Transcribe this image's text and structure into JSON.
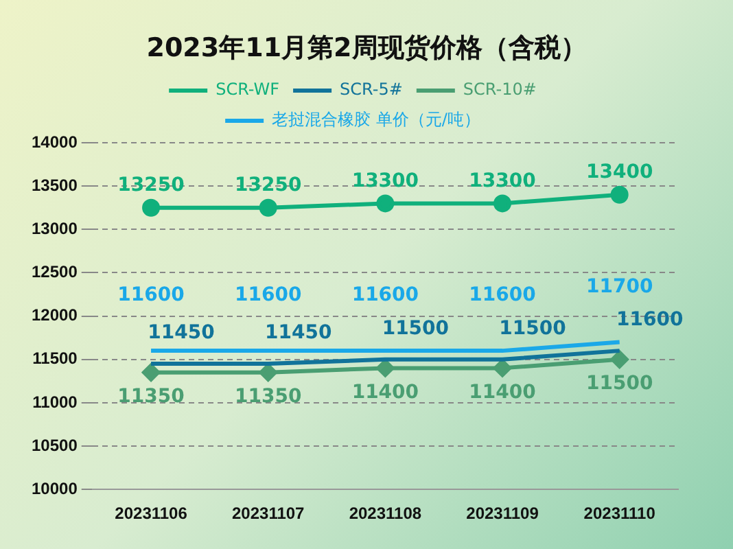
{
  "chart_data": {
    "type": "line",
    "title": "2023年11月第2周现货价格（含税）",
    "categories": [
      "20231106",
      "20231107",
      "20231108",
      "20231109",
      "20231110"
    ],
    "series": [
      {
        "name": "SCR-WF",
        "color": "#10b07c",
        "marker": "circle",
        "values": [
          13250,
          13250,
          13300,
          13300,
          13400
        ]
      },
      {
        "name": "SCR-5#",
        "color": "#11739a",
        "marker": "none",
        "values": [
          11450,
          11450,
          11500,
          11500,
          11600
        ]
      },
      {
        "name": "SCR-10#",
        "color": "#4a9e72",
        "marker": "diamond",
        "values": [
          11350,
          11350,
          11400,
          11400,
          11500
        ]
      },
      {
        "name": "老挝混合橡胶 单价（元/吨）",
        "color": "#1aa8e8",
        "marker": "none",
        "values": [
          11600,
          11600,
          11600,
          11600,
          11700
        ]
      }
    ],
    "ylim": [
      10000,
      14000
    ],
    "yticks": [
      10000,
      10500,
      11000,
      11500,
      12000,
      12500,
      13000,
      13500,
      14000
    ],
    "grid": "y",
    "line_style": "solid",
    "legend": "top",
    "data_labels": true
  }
}
